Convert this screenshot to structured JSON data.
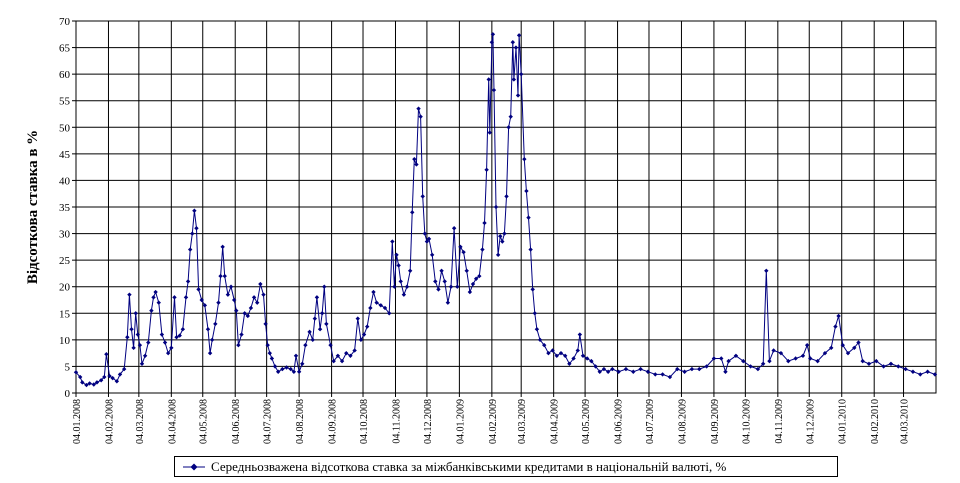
{
  "chart_data": {
    "type": "line",
    "title": "",
    "xlabel": "",
    "ylabel": "Відсоткова ставка в %",
    "ylim": [
      0,
      70
    ],
    "yticks": [
      0,
      5,
      10,
      15,
      20,
      25,
      30,
      35,
      40,
      45,
      50,
      55,
      60,
      65,
      70
    ],
    "xlim": [
      "2008-01-04",
      "2010-04-04"
    ],
    "xtick_labels": [
      "04.01.2008",
      "04.02.2008",
      "04.03.2008",
      "04.04.2008",
      "04.05.2008",
      "04.06.2008",
      "04.07.2008",
      "04.08.2008",
      "04.09.2008",
      "04.10.2008",
      "04.11.2008",
      "04.12.2008",
      "04.01.2009",
      "04.02.2009",
      "04.03.2009",
      "04.04.2009",
      "04.05.2009",
      "04.06.2009",
      "04.07.2009",
      "04.08.2009",
      "04.09.2009",
      "04.10.2009",
      "04.11.2009",
      "04.12.2009",
      "04.01.2010",
      "04.02.2010",
      "04.03.2010"
    ],
    "grid": true,
    "legend_position": "bottom",
    "color": "#000080",
    "series": [
      {
        "name": "Середньозважена відсоткова ставка за міжбанківськими кредитами в національній валюті, %",
        "points": [
          [
            "2008-01-04",
            3.9
          ],
          [
            "2008-01-08",
            3.0
          ],
          [
            "2008-01-10",
            2.0
          ],
          [
            "2008-01-14",
            1.5
          ],
          [
            "2008-01-17",
            1.8
          ],
          [
            "2008-01-21",
            1.6
          ],
          [
            "2008-01-24",
            2.0
          ],
          [
            "2008-01-28",
            2.4
          ],
          [
            "2008-01-31",
            3.0
          ],
          [
            "2008-02-02",
            7.3
          ],
          [
            "2008-02-05",
            3.2
          ],
          [
            "2008-02-08",
            2.8
          ],
          [
            "2008-02-12",
            2.2
          ],
          [
            "2008-02-15",
            3.5
          ],
          [
            "2008-02-19",
            4.5
          ],
          [
            "2008-02-22",
            10.5
          ],
          [
            "2008-02-24",
            18.5
          ],
          [
            "2008-02-26",
            12.0
          ],
          [
            "2008-02-28",
            8.5
          ],
          [
            "2008-03-01",
            15.0
          ],
          [
            "2008-03-03",
            11.0
          ],
          [
            "2008-03-05",
            9.0
          ],
          [
            "2008-03-07",
            5.5
          ],
          [
            "2008-03-10",
            7.0
          ],
          [
            "2008-03-13",
            9.5
          ],
          [
            "2008-03-16",
            15.5
          ],
          [
            "2008-03-18",
            18.0
          ],
          [
            "2008-03-20",
            19.0
          ],
          [
            "2008-03-23",
            17.0
          ],
          [
            "2008-03-26",
            11.0
          ],
          [
            "2008-03-29",
            9.5
          ],
          [
            "2008-04-01",
            7.5
          ],
          [
            "2008-04-04",
            8.5
          ],
          [
            "2008-04-07",
            18.0
          ],
          [
            "2008-04-09",
            10.5
          ],
          [
            "2008-04-12",
            10.8
          ],
          [
            "2008-04-15",
            12.0
          ],
          [
            "2008-04-18",
            18.0
          ],
          [
            "2008-04-20",
            21.0
          ],
          [
            "2008-04-22",
            27.0
          ],
          [
            "2008-04-24",
            30.0
          ],
          [
            "2008-04-26",
            34.3
          ],
          [
            "2008-04-28",
            31.0
          ],
          [
            "2008-04-30",
            19.5
          ],
          [
            "2008-05-03",
            17.5
          ],
          [
            "2008-05-06",
            16.5
          ],
          [
            "2008-05-09",
            12.0
          ],
          [
            "2008-05-11",
            7.5
          ],
          [
            "2008-05-13",
            10.0
          ],
          [
            "2008-05-16",
            13.0
          ],
          [
            "2008-05-19",
            17.0
          ],
          [
            "2008-05-21",
            22.0
          ],
          [
            "2008-05-23",
            27.5
          ],
          [
            "2008-05-25",
            22.0
          ],
          [
            "2008-05-28",
            18.5
          ],
          [
            "2008-05-31",
            20.0
          ],
          [
            "2008-06-03",
            17.5
          ],
          [
            "2008-06-05",
            15.5
          ],
          [
            "2008-06-07",
            9.0
          ],
          [
            "2008-06-10",
            11.0
          ],
          [
            "2008-06-13",
            15.0
          ],
          [
            "2008-06-16",
            14.5
          ],
          [
            "2008-06-19",
            16.0
          ],
          [
            "2008-06-22",
            18.0
          ],
          [
            "2008-06-25",
            17.0
          ],
          [
            "2008-06-28",
            20.5
          ],
          [
            "2008-07-01",
            18.5
          ],
          [
            "2008-07-03",
            13.0
          ],
          [
            "2008-07-05",
            9.0
          ],
          [
            "2008-07-07",
            7.5
          ],
          [
            "2008-07-09",
            6.5
          ],
          [
            "2008-07-12",
            5.0
          ],
          [
            "2008-07-15",
            4.0
          ],
          [
            "2008-07-19",
            4.5
          ],
          [
            "2008-07-23",
            4.8
          ],
          [
            "2008-07-27",
            4.5
          ],
          [
            "2008-07-30",
            4.0
          ],
          [
            "2008-08-01",
            7.0
          ],
          [
            "2008-08-04",
            4.0
          ],
          [
            "2008-08-07",
            5.5
          ],
          [
            "2008-08-10",
            9.0
          ],
          [
            "2008-08-14",
            11.5
          ],
          [
            "2008-08-17",
            10.0
          ],
          [
            "2008-08-19",
            14.0
          ],
          [
            "2008-08-21",
            18.0
          ],
          [
            "2008-08-24",
            12.0
          ],
          [
            "2008-08-26",
            15.0
          ],
          [
            "2008-08-28",
            20.0
          ],
          [
            "2008-08-30",
            13.0
          ],
          [
            "2008-09-03",
            9.0
          ],
          [
            "2008-09-06",
            6.0
          ],
          [
            "2008-09-10",
            7.0
          ],
          [
            "2008-09-14",
            6.0
          ],
          [
            "2008-09-18",
            7.5
          ],
          [
            "2008-09-22",
            7.0
          ],
          [
            "2008-09-26",
            8.0
          ],
          [
            "2008-09-29",
            14.0
          ],
          [
            "2008-10-02",
            10.0
          ],
          [
            "2008-10-05",
            11.0
          ],
          [
            "2008-10-08",
            12.5
          ],
          [
            "2008-10-11",
            16.0
          ],
          [
            "2008-10-14",
            19.0
          ],
          [
            "2008-10-17",
            17.0
          ],
          [
            "2008-10-21",
            16.5
          ],
          [
            "2008-10-25",
            16.0
          ],
          [
            "2008-10-29",
            15.0
          ],
          [
            "2008-11-01",
            28.5
          ],
          [
            "2008-11-03",
            20.0
          ],
          [
            "2008-11-05",
            26.0
          ],
          [
            "2008-11-07",
            24.0
          ],
          [
            "2008-11-09",
            21.0
          ],
          [
            "2008-11-12",
            18.5
          ],
          [
            "2008-11-15",
            20.0
          ],
          [
            "2008-11-18",
            23.0
          ],
          [
            "2008-11-20",
            34.0
          ],
          [
            "2008-11-22",
            44.0
          ],
          [
            "2008-11-24",
            43.0
          ],
          [
            "2008-11-26",
            53.5
          ],
          [
            "2008-11-28",
            52.0
          ],
          [
            "2008-11-30",
            37.0
          ],
          [
            "2008-12-02",
            30.0
          ],
          [
            "2008-12-04",
            28.5
          ],
          [
            "2008-12-06",
            29.0
          ],
          [
            "2008-12-09",
            26.0
          ],
          [
            "2008-12-12",
            21.0
          ],
          [
            "2008-12-15",
            19.5
          ],
          [
            "2008-12-18",
            23.0
          ],
          [
            "2008-12-21",
            21.0
          ],
          [
            "2008-12-24",
            17.0
          ],
          [
            "2008-12-27",
            20.0
          ],
          [
            "2008-12-30",
            31.0
          ],
          [
            "2009-01-02",
            20.0
          ],
          [
            "2009-01-05",
            27.5
          ],
          [
            "2009-01-08",
            26.5
          ],
          [
            "2009-01-11",
            23.0
          ],
          [
            "2009-01-14",
            19.0
          ],
          [
            "2009-01-17",
            20.5
          ],
          [
            "2009-01-20",
            21.5
          ],
          [
            "2009-01-23",
            22.0
          ],
          [
            "2009-01-26",
            27.0
          ],
          [
            "2009-01-28",
            32.0
          ],
          [
            "2009-01-30",
            42.0
          ],
          [
            "2009-02-01",
            59.0
          ],
          [
            "2009-02-02",
            49.0
          ],
          [
            "2009-02-04",
            66.0
          ],
          [
            "2009-02-05",
            67.5
          ],
          [
            "2009-02-06",
            57.0
          ],
          [
            "2009-02-08",
            35.0
          ],
          [
            "2009-02-10",
            26.0
          ],
          [
            "2009-02-12",
            29.5
          ],
          [
            "2009-02-14",
            28.5
          ],
          [
            "2009-02-16",
            30.0
          ],
          [
            "2009-02-18",
            37.0
          ],
          [
            "2009-02-20",
            50.0
          ],
          [
            "2009-02-22",
            52.0
          ],
          [
            "2009-02-24",
            66.0
          ],
          [
            "2009-02-25",
            59.0
          ],
          [
            "2009-02-27",
            65.0
          ],
          [
            "2009-03-01",
            56.0
          ],
          [
            "2009-03-02",
            67.3
          ],
          [
            "2009-03-04",
            60.0
          ],
          [
            "2009-03-07",
            44.0
          ],
          [
            "2009-03-09",
            38.0
          ],
          [
            "2009-03-11",
            33.0
          ],
          [
            "2009-03-13",
            27.0
          ],
          [
            "2009-03-15",
            19.5
          ],
          [
            "2009-03-17",
            15.0
          ],
          [
            "2009-03-19",
            12.0
          ],
          [
            "2009-03-22",
            10.0
          ],
          [
            "2009-03-26",
            9.0
          ],
          [
            "2009-03-30",
            7.5
          ],
          [
            "2009-04-03",
            8.0
          ],
          [
            "2009-04-07",
            7.0
          ],
          [
            "2009-04-11",
            7.5
          ],
          [
            "2009-04-15",
            7.0
          ],
          [
            "2009-04-19",
            5.5
          ],
          [
            "2009-04-23",
            6.5
          ],
          [
            "2009-04-27",
            8.0
          ],
          [
            "2009-04-29",
            11.0
          ],
          [
            "2009-05-02",
            7.0
          ],
          [
            "2009-05-06",
            6.5
          ],
          [
            "2009-05-10",
            6.0
          ],
          [
            "2009-05-14",
            5.0
          ],
          [
            "2009-05-18",
            4.0
          ],
          [
            "2009-05-22",
            4.5
          ],
          [
            "2009-05-26",
            4.0
          ],
          [
            "2009-05-30",
            4.5
          ],
          [
            "2009-06-05",
            4.0
          ],
          [
            "2009-06-12",
            4.5
          ],
          [
            "2009-06-19",
            4.0
          ],
          [
            "2009-06-26",
            4.5
          ],
          [
            "2009-07-03",
            4.0
          ],
          [
            "2009-07-10",
            3.5
          ],
          [
            "2009-07-17",
            3.5
          ],
          [
            "2009-07-24",
            3.0
          ],
          [
            "2009-07-31",
            4.5
          ],
          [
            "2009-08-07",
            4.0
          ],
          [
            "2009-08-14",
            4.5
          ],
          [
            "2009-08-21",
            4.5
          ],
          [
            "2009-08-28",
            5.0
          ],
          [
            "2009-09-04",
            6.5
          ],
          [
            "2009-09-11",
            6.5
          ],
          [
            "2009-09-15",
            4.0
          ],
          [
            "2009-09-18",
            6.0
          ],
          [
            "2009-09-25",
            7.0
          ],
          [
            "2009-10-02",
            6.0
          ],
          [
            "2009-10-09",
            5.0
          ],
          [
            "2009-10-16",
            4.5
          ],
          [
            "2009-10-21",
            5.5
          ],
          [
            "2009-10-24",
            23.0
          ],
          [
            "2009-10-27",
            6.0
          ],
          [
            "2009-10-31",
            8.0
          ],
          [
            "2009-11-07",
            7.5
          ],
          [
            "2009-11-14",
            6.0
          ],
          [
            "2009-11-21",
            6.5
          ],
          [
            "2009-11-28",
            7.0
          ],
          [
            "2009-12-02",
            9.0
          ],
          [
            "2009-12-05",
            6.5
          ],
          [
            "2009-12-12",
            6.0
          ],
          [
            "2009-12-19",
            7.5
          ],
          [
            "2009-12-25",
            8.5
          ],
          [
            "2009-12-29",
            12.5
          ],
          [
            "2010-01-01",
            14.5
          ],
          [
            "2010-01-05",
            9.0
          ],
          [
            "2010-01-10",
            7.5
          ],
          [
            "2010-01-16",
            8.5
          ],
          [
            "2010-01-20",
            9.5
          ],
          [
            "2010-01-24",
            6.0
          ],
          [
            "2010-01-30",
            5.5
          ],
          [
            "2010-02-06",
            6.0
          ],
          [
            "2010-02-13",
            5.0
          ],
          [
            "2010-02-20",
            5.5
          ],
          [
            "2010-02-27",
            5.0
          ],
          [
            "2010-03-06",
            4.5
          ],
          [
            "2010-03-13",
            4.0
          ],
          [
            "2010-03-20",
            3.5
          ],
          [
            "2010-03-27",
            4.0
          ],
          [
            "2010-04-03",
            3.5
          ]
        ]
      }
    ]
  }
}
